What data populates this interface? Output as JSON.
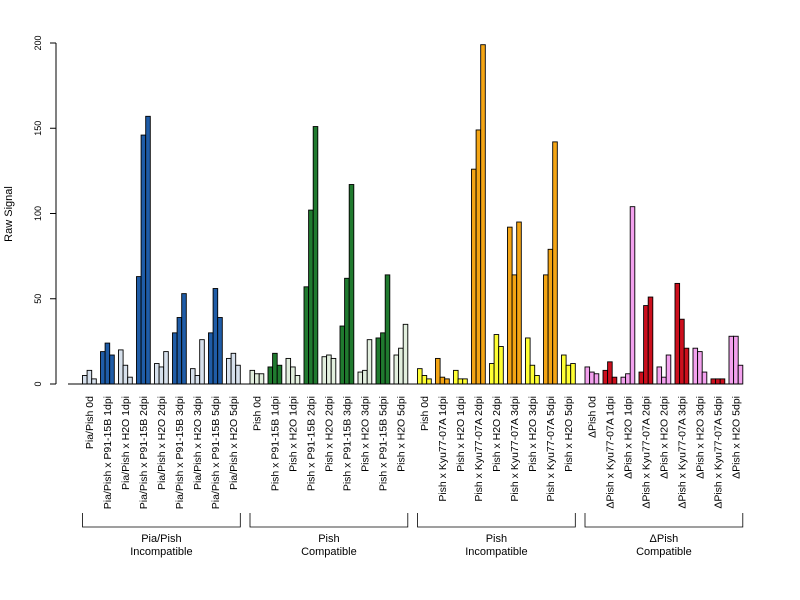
{
  "chart_data": {
    "type": "bar",
    "title": "",
    "ylabel": "Raw Signal",
    "xlabel": "",
    "ylim": [
      0,
      200
    ],
    "yticks": [
      0,
      50,
      100,
      150,
      200
    ],
    "grid": false,
    "legend": "none",
    "groups": [
      {
        "label_line1": "Pia/Pish",
        "label_line2": "Incompatible",
        "color_dark": "#1f5ca7",
        "color_light": "#d6e0ec",
        "categories": [
          {
            "label": "Pia/Pish 0d",
            "treated": false,
            "values": [
              5,
              8,
              3
            ]
          },
          {
            "label": "Pia/Pish x P91-15B 1dpi",
            "treated": true,
            "values": [
              19,
              24,
              17
            ]
          },
          {
            "label": "Pia/Pish x H2O 1dpi",
            "treated": false,
            "values": [
              20,
              11,
              4
            ]
          },
          {
            "label": "Pia/Pish x P91-15B 2dpi",
            "treated": true,
            "values": [
              63,
              146,
              157
            ]
          },
          {
            "label": "Pia/Pish x H2O 2dpi",
            "treated": false,
            "values": [
              12,
              10,
              19
            ]
          },
          {
            "label": "Pia/Pish x P91-15B 3dpi",
            "treated": true,
            "values": [
              30,
              39,
              53
            ]
          },
          {
            "label": "Pia/Pish x H2O 3dpi",
            "treated": false,
            "values": [
              9,
              5,
              26
            ]
          },
          {
            "label": "Pia/Pish x P91-15B 5dpi",
            "treated": true,
            "values": [
              30,
              56,
              39
            ]
          },
          {
            "label": "Pia/Pish x H2O 5dpi",
            "treated": false,
            "values": [
              15,
              18,
              11
            ]
          }
        ]
      },
      {
        "label_line1": "Pish",
        "label_line2": "Compatible",
        "color_dark": "#207a2f",
        "color_light": "#e2efde",
        "categories": [
          {
            "label": "Pish 0d",
            "treated": false,
            "values": [
              8,
              6,
              6
            ]
          },
          {
            "label": "Pish x P91-15B 1dpi",
            "treated": true,
            "values": [
              10,
              18,
              11
            ]
          },
          {
            "label": "Pish x H2O 1dpi",
            "treated": false,
            "values": [
              15,
              10,
              5
            ]
          },
          {
            "label": "Pish x P91-15B 2dpi",
            "treated": true,
            "values": [
              57,
              102,
              151
            ]
          },
          {
            "label": "Pish x H2O 2dpi",
            "treated": false,
            "values": [
              16,
              17,
              15
            ]
          },
          {
            "label": "Pish x P91-15B 3dpi",
            "treated": true,
            "values": [
              34,
              62,
              117
            ]
          },
          {
            "label": "Pish x H2O 3dpi",
            "treated": false,
            "values": [
              7,
              8,
              26
            ]
          },
          {
            "label": "Pish x P91-15B 5dpi",
            "treated": true,
            "values": [
              27,
              30,
              64
            ]
          },
          {
            "label": "Pish x H2O 5dpi",
            "treated": false,
            "values": [
              17,
              21,
              35
            ]
          }
        ]
      },
      {
        "label_line1": "Pish",
        "label_line2": "Incompatible",
        "color_dark": "#f4a514",
        "color_light": "#ffff33",
        "categories": [
          {
            "label": "Pish 0d",
            "treated": false,
            "values": [
              9,
              5,
              3
            ]
          },
          {
            "label": "Pish x Kyu77-07A 1dpi",
            "treated": true,
            "values": [
              15,
              4,
              3
            ]
          },
          {
            "label": "Pish x H2O 1dpi",
            "treated": false,
            "values": [
              8,
              3,
              3
            ]
          },
          {
            "label": "Pish x Kyu77-07A 2dpi",
            "treated": true,
            "values": [
              126,
              149,
              199
            ]
          },
          {
            "label": "Pish x H2O 2dpi",
            "treated": false,
            "values": [
              12,
              29,
              22
            ]
          },
          {
            "label": "Pish x Kyu77-07A 3dpi",
            "treated": true,
            "values": [
              92,
              64,
              95
            ]
          },
          {
            "label": "Pish x H2O 3dpi",
            "treated": false,
            "values": [
              27,
              11,
              5
            ]
          },
          {
            "label": "Pish x Kyu77-07A 5dpi",
            "treated": true,
            "values": [
              64,
              79,
              142
            ]
          },
          {
            "label": "Pish x H2O 5dpi",
            "treated": false,
            "values": [
              17,
              11,
              12
            ]
          }
        ]
      },
      {
        "label_line1": "ΔPish",
        "label_line2": "Compatible",
        "color_dark": "#cc0f1d",
        "color_light": "#f3a1ee",
        "categories": [
          {
            "label": "ΔPish 0d",
            "treated": false,
            "values": [
              10,
              7,
              6
            ]
          },
          {
            "label": "ΔPish x Kyu77-07A 1dpi",
            "treated": true,
            "values": [
              8,
              13,
              4
            ]
          },
          {
            "label": "ΔPish x H2O 1dpi",
            "treated": false,
            "values": [
              4,
              6,
              104
            ]
          },
          {
            "label": "ΔPish x Kyu77-07A 2dpi",
            "treated": true,
            "values": [
              7,
              46,
              51
            ]
          },
          {
            "label": "ΔPish x H2O 2dpi",
            "treated": false,
            "values": [
              10,
              4,
              17
            ]
          },
          {
            "label": "ΔPish x Kyu77-07A 3dpi",
            "treated": true,
            "values": [
              59,
              38,
              21
            ]
          },
          {
            "label": "ΔPish x H2O 3dpi",
            "treated": false,
            "values": [
              21,
              19,
              7
            ]
          },
          {
            "label": "ΔPish x Kyu77-07A 5dpi",
            "treated": true,
            "values": [
              3,
              3,
              3
            ]
          },
          {
            "label": "ΔPish x H2O 5dpi",
            "treated": false,
            "values": [
              28,
              28,
              11
            ]
          }
        ]
      }
    ]
  }
}
